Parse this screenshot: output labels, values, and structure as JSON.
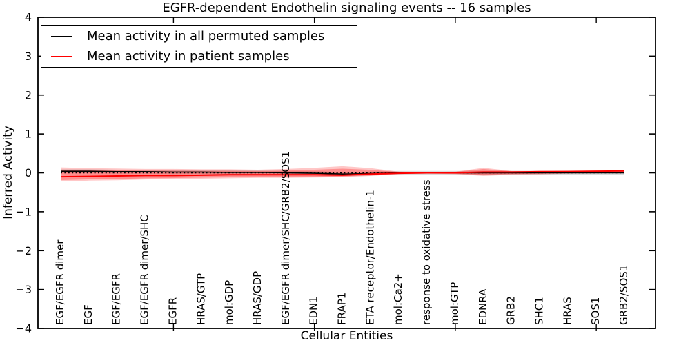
{
  "figure": {
    "kind": "matplotlib-style line chart"
  },
  "legend": {
    "position": "upper left",
    "items": [
      {
        "label": "Mean activity in all permuted samples",
        "color": "#000000"
      },
      {
        "label": "Mean activity in patient samples",
        "color": "#ff0000"
      }
    ]
  },
  "chart_data": {
    "type": "line",
    "title": "EGFR-dependent Endothelin signaling events -- 16 samples",
    "xlabel": "Cellular Entities",
    "ylabel": "Inferred Activity",
    "ylim": [
      -4,
      4
    ],
    "yticks": [
      -4,
      -3,
      -2,
      -1,
      0,
      1,
      2,
      3,
      4
    ],
    "grid": false,
    "legend_position": "upper left",
    "xtick_mark_indices": [
      4,
      9,
      14,
      19
    ],
    "categories": [
      "EGF/EGFR dimer",
      "EGF",
      "EGF/EGFR",
      "EGF/EGFR dimer/SHC",
      "EGFR",
      "HRAS/GTP",
      "mol:GDP",
      "HRAS/GDP",
      "EGF/EGFR dimer/SHC/GRB2/SOS1",
      "EDN1",
      "FRAP1",
      "ETA receptor/Endothelin-1",
      "mol:Ca2+",
      "response to oxidative stress",
      "mol:GTP",
      "EDNRA",
      "GRB2",
      "SHC1",
      "HRAS",
      "SOS1",
      "GRB2/SOS1"
    ],
    "series": [
      {
        "name": "Mean activity in all permuted samples",
        "color": "#000000",
        "values": [
          0.04,
          0.04,
          0.03,
          0.03,
          0.02,
          0.02,
          0.01,
          0.01,
          0.0,
          -0.01,
          -0.03,
          -0.02,
          0.0,
          0.0,
          0.0,
          0.0,
          0.0,
          0.0,
          0.0,
          0.0,
          0.0
        ]
      },
      {
        "name": "Mean activity in patient samples",
        "color": "#ff0000",
        "values": [
          -0.1,
          -0.09,
          -0.08,
          -0.07,
          -0.07,
          -0.06,
          -0.05,
          -0.05,
          -0.05,
          -0.05,
          -0.06,
          -0.03,
          -0.01,
          0.0,
          0.0,
          0.02,
          0.02,
          0.03,
          0.03,
          0.04,
          0.05
        ]
      }
    ],
    "bands": [
      {
        "name": "permuted-samples-band",
        "color": "#999999",
        "alpha": 0.35,
        "upper": [
          0.09,
          0.09,
          0.08,
          0.08,
          0.07,
          0.07,
          0.06,
          0.06,
          0.05,
          0.04,
          0.02,
          0.03,
          0.05,
          0.05,
          0.05,
          0.05,
          0.05,
          0.05,
          0.05,
          0.05,
          0.05
        ],
        "lower": [
          -0.01,
          -0.01,
          -0.02,
          -0.02,
          -0.03,
          -0.03,
          -0.04,
          -0.04,
          -0.05,
          -0.06,
          -0.08,
          -0.07,
          -0.05,
          -0.05,
          -0.05,
          -0.05,
          -0.05,
          -0.05,
          -0.05,
          -0.05,
          -0.05
        ]
      },
      {
        "name": "patient-samples-band",
        "color": "#ff0000",
        "alpha": 0.22,
        "upper": [
          0.14,
          0.12,
          0.11,
          0.1,
          0.1,
          0.09,
          0.09,
          0.08,
          0.1,
          0.13,
          0.17,
          0.12,
          0.03,
          0.02,
          0.03,
          0.13,
          0.05,
          0.05,
          0.06,
          0.07,
          0.08
        ],
        "lower": [
          -0.22,
          -0.2,
          -0.19,
          -0.17,
          -0.16,
          -0.15,
          -0.14,
          -0.13,
          -0.13,
          -0.12,
          -0.11,
          -0.08,
          -0.03,
          -0.02,
          -0.03,
          -0.08,
          -0.05,
          -0.04,
          -0.02,
          -0.01,
          0.02
        ]
      }
    ],
    "zero_line": {
      "y": 0,
      "style": "dotted",
      "color": "#000000"
    }
  }
}
